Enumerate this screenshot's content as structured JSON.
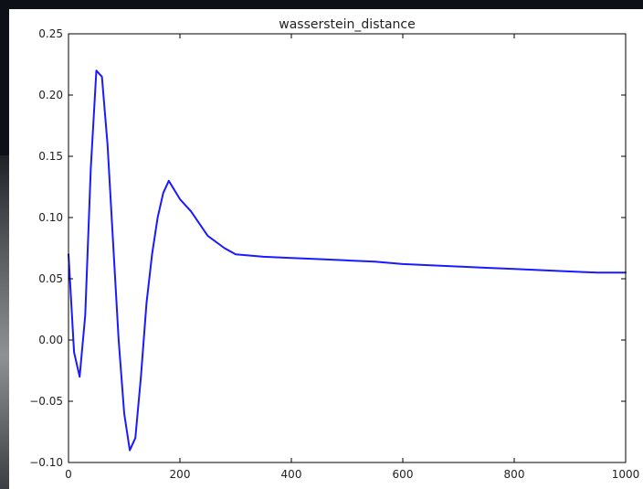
{
  "chart_data": {
    "type": "line",
    "title": "wasserstein_distance",
    "xlabel": "",
    "ylabel": "",
    "xlim": [
      0,
      1000
    ],
    "ylim": [
      -0.1,
      0.25
    ],
    "xticks": [
      0,
      200,
      400,
      600,
      800,
      1000
    ],
    "yticks": [
      -0.1,
      -0.05,
      0.0,
      0.05,
      0.1,
      0.15,
      0.2,
      0.25
    ],
    "xtick_labels": [
      "0",
      "200",
      "400",
      "600",
      "800",
      "1000"
    ],
    "ytick_labels": [
      "−0.10",
      "−0.05",
      "0.00",
      "0.05",
      "0.10",
      "0.15",
      "0.20",
      "0.25"
    ],
    "grid": false,
    "colors": {
      "line": "#1a1aff",
      "axes": "#000000",
      "panel": "#ffffff"
    },
    "series": [
      {
        "x": [
          0,
          10,
          20,
          30,
          40,
          50,
          60,
          70,
          80,
          90,
          100,
          110,
          120,
          130,
          140,
          150,
          160,
          170,
          180,
          200,
          220,
          250,
          280,
          300,
          350,
          400,
          450,
          500,
          550,
          600,
          650,
          700,
          750,
          800,
          850,
          900,
          950,
          1000
        ],
        "y": [
          0.07,
          -0.01,
          -0.03,
          0.02,
          0.14,
          0.22,
          0.215,
          0.16,
          0.08,
          0.0,
          -0.06,
          -0.09,
          -0.08,
          -0.03,
          0.03,
          0.07,
          0.1,
          0.12,
          0.13,
          0.115,
          0.105,
          0.085,
          0.075,
          0.07,
          0.068,
          0.067,
          0.066,
          0.065,
          0.064,
          0.062,
          0.061,
          0.06,
          0.059,
          0.058,
          0.057,
          0.056,
          0.055,
          0.055
        ]
      }
    ]
  }
}
